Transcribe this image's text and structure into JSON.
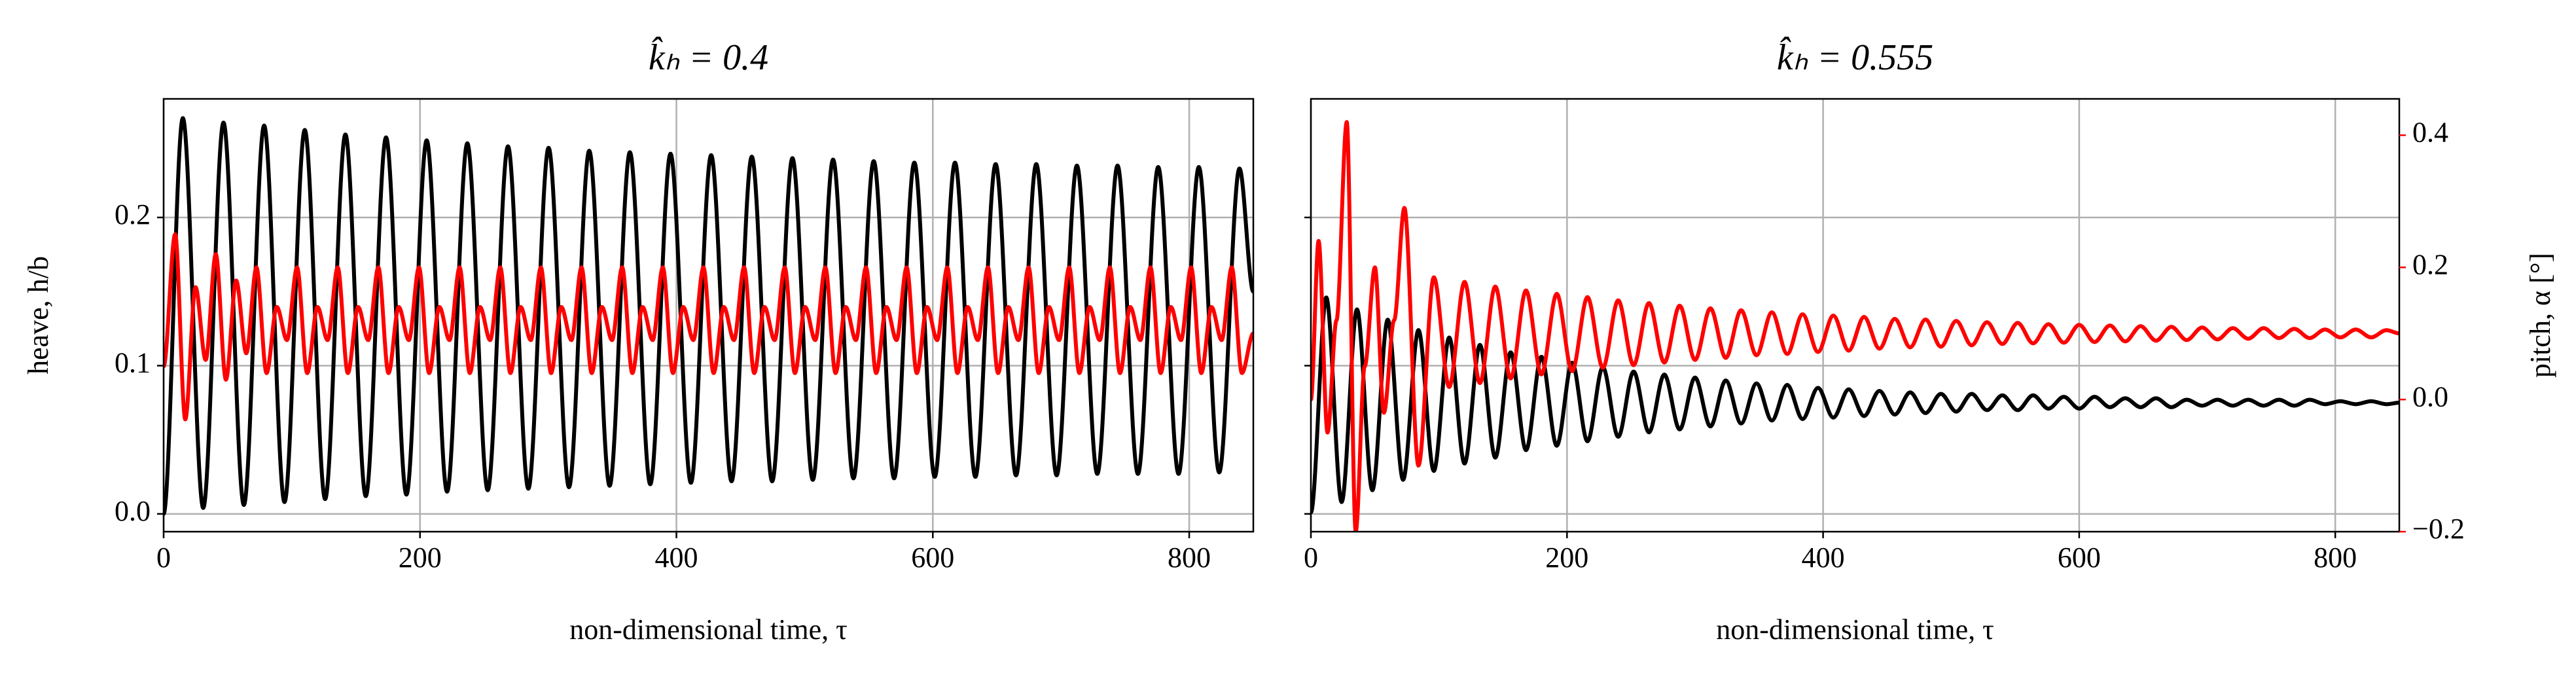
{
  "chart_data": [
    {
      "type": "line",
      "title": "k̂ₕ = 0.4",
      "xlabel": "non-dimensional time, τ",
      "ylabel": "heave, h/b",
      "xlim": [
        0,
        850
      ],
      "xticks": [
        0,
        200,
        400,
        600,
        800
      ],
      "ylim": [
        -0.012,
        0.28
      ],
      "yticks": [
        {
          "value": 0,
          "label": "0.0"
        },
        0.1,
        0.2
      ],
      "y2lim": [
        -0.2,
        0.455
      ],
      "grid": true,
      "series": [
        {
          "color": "#000000",
          "x": [
            0,
            15,
            30.9,
            46.7,
            62.6,
            78.4,
            94.3,
            110.1,
            126,
            141.8,
            157.7,
            173.5,
            189.4,
            205.2,
            221.1,
            236.9,
            252.8,
            268.6,
            284.5,
            300.3,
            316.2,
            332,
            347.9,
            363.7,
            379.6,
            395.4,
            411.3,
            427.1,
            443,
            458.8,
            474.7,
            490.5,
            506.4,
            522.2,
            538.1,
            553.9,
            569.8,
            585.6,
            601.5,
            617.3,
            633.2,
            649,
            664.9,
            680.7,
            696.6,
            712.4,
            728.3,
            744.1,
            760,
            775.8,
            791.7,
            807.5,
            823.4,
            839.2,
            850
          ],
          "values": [
            0,
            0.267,
            0.004,
            0.264,
            0.006,
            0.262,
            0.008,
            0.259,
            0.01,
            0.256,
            0.012,
            0.254,
            0.013,
            0.252,
            0.015,
            0.25,
            0.016,
            0.248,
            0.017,
            0.247,
            0.018,
            0.245,
            0.019,
            0.244,
            0.02,
            0.243,
            0.021,
            0.242,
            0.022,
            0.241,
            0.022,
            0.24,
            0.023,
            0.239,
            0.024,
            0.238,
            0.024,
            0.237,
            0.025,
            0.237,
            0.025,
            0.236,
            0.026,
            0.236,
            0.026,
            0.235,
            0.027,
            0.235,
            0.027,
            0.234,
            0.027,
            0.234,
            0.028,
            0.233,
            0.15
          ]
        },
        {
          "color": "#ff0000",
          "axis": "y2",
          "x": [
            0,
            9,
            16.9,
            24.9,
            32.8,
            40.7,
            48.6,
            56.6,
            64.5,
            72.4,
            80.3,
            88.3,
            96.2,
            104.1,
            112,
            120,
            127.9,
            135.8,
            143.7,
            151.7,
            159.6,
            167.5,
            175.4,
            183.4,
            191.3,
            199.2,
            207.1,
            215.1,
            223,
            230.9,
            238.8,
            246.8,
            254.7,
            262.6,
            270.5,
            278.5,
            286.4,
            294.3,
            302.2,
            310.2,
            318.1,
            326,
            333.9,
            341.9,
            349.8,
            357.7,
            365.6,
            373.6,
            381.5,
            389.4,
            397.3,
            405.3,
            413.2,
            421.1,
            429,
            437,
            444.9,
            452.8,
            460.7,
            468.7,
            476.6,
            484.5,
            492.4,
            500.4,
            508.3,
            516.2,
            524.1,
            532.1,
            540,
            547.9,
            555.8,
            563.8,
            571.7,
            579.6,
            587.5,
            595.5,
            603.4,
            611.3,
            619.2,
            627.2,
            635.1,
            643,
            650.9,
            658.9,
            666.8,
            674.7,
            682.6,
            690.6,
            698.5,
            706.4,
            714.3,
            722.3,
            730.2,
            738.1,
            746,
            754,
            761.9,
            769.8,
            777.7,
            785.7,
            793.6,
            801.5,
            809.4,
            817.4,
            825.3,
            833.2,
            841.1,
            850
          ],
          "values": [
            0.05,
            0.25,
            -0.03,
            0.17,
            0.06,
            0.22,
            0.03,
            0.18,
            0.07,
            0.2,
            0.04,
            0.14,
            0.09,
            0.2,
            0.04,
            0.14,
            0.09,
            0.2,
            0.04,
            0.14,
            0.09,
            0.2,
            0.04,
            0.14,
            0.09,
            0.2,
            0.04,
            0.14,
            0.09,
            0.2,
            0.04,
            0.14,
            0.09,
            0.2,
            0.04,
            0.14,
            0.09,
            0.2,
            0.04,
            0.14,
            0.09,
            0.2,
            0.04,
            0.14,
            0.09,
            0.2,
            0.04,
            0.14,
            0.09,
            0.2,
            0.04,
            0.14,
            0.09,
            0.2,
            0.04,
            0.14,
            0.09,
            0.2,
            0.04,
            0.14,
            0.09,
            0.2,
            0.04,
            0.14,
            0.09,
            0.2,
            0.04,
            0.14,
            0.09,
            0.2,
            0.04,
            0.14,
            0.09,
            0.2,
            0.04,
            0.14,
            0.09,
            0.2,
            0.04,
            0.14,
            0.09,
            0.2,
            0.04,
            0.14,
            0.09,
            0.2,
            0.04,
            0.14,
            0.09,
            0.2,
            0.04,
            0.14,
            0.09,
            0.2,
            0.04,
            0.14,
            0.09,
            0.2,
            0.04,
            0.14,
            0.09,
            0.2,
            0.04,
            0.14,
            0.09,
            0.2,
            0.04,
            0.1
          ]
        }
      ]
    },
    {
      "type": "line",
      "title": "k̂ₕ = 0.555",
      "xlabel": "non-dimensional time, τ",
      "y2label": "pitch, α [°]",
      "xlim": [
        0,
        850
      ],
      "xticks": [
        0,
        200,
        400,
        600,
        800
      ],
      "ylim": [
        -0.012,
        0.28
      ],
      "yticks": [
        0,
        0.1,
        0.2
      ],
      "sharey": true,
      "y2lim": [
        -0.2,
        0.455
      ],
      "y2ticks": [
        {
          "value": -0.2,
          "label": "−0.2"
        },
        {
          "value": 0,
          "label": "0.0"
        },
        0.2,
        0.4
      ],
      "y2color": "#ff0000",
      "grid": true,
      "series": [
        {
          "color": "#000000",
          "x": [
            0,
            12,
            24,
            36,
            48,
            60,
            72,
            84,
            96,
            108,
            120,
            132,
            144,
            156,
            168,
            180,
            192,
            204,
            216,
            228,
            240,
            252,
            264,
            276,
            288,
            300,
            312,
            324,
            336,
            348,
            360,
            372,
            384,
            396,
            408,
            420,
            432,
            444,
            456,
            468,
            480,
            492,
            504,
            516,
            528,
            540,
            552,
            564,
            576,
            588,
            600,
            612,
            624,
            636,
            648,
            660,
            672,
            684,
            696,
            708,
            720,
            732,
            744,
            756,
            768,
            780,
            792,
            804,
            816,
            828,
            840,
            850
          ],
          "values": [
            0.001,
            0.146,
            0.008,
            0.138,
            0.016,
            0.131,
            0.023,
            0.124,
            0.029,
            0.119,
            0.034,
            0.114,
            0.038,
            0.109,
            0.043,
            0.106,
            0.046,
            0.102,
            0.049,
            0.099,
            0.052,
            0.096,
            0.055,
            0.094,
            0.057,
            0.092,
            0.059,
            0.09,
            0.061,
            0.088,
            0.063,
            0.087,
            0.064,
            0.085,
            0.065,
            0.084,
            0.066,
            0.083,
            0.067,
            0.082,
            0.068,
            0.081,
            0.069,
            0.081,
            0.07,
            0.08,
            0.07,
            0.08,
            0.071,
            0.079,
            0.071,
            0.079,
            0.072,
            0.078,
            0.072,
            0.078,
            0.072,
            0.077,
            0.073,
            0.077,
            0.073,
            0.077,
            0.073,
            0.077,
            0.073,
            0.077,
            0.074,
            0.076,
            0.074,
            0.076,
            0.074,
            0.075
          ]
        },
        {
          "color": "#ff0000",
          "axis": "y2",
          "x": [
            0,
            6,
            13,
            20,
            28,
            35,
            42,
            50,
            57,
            65,
            73,
            84,
            96,
            108,
            120,
            132,
            144,
            156,
            168,
            180,
            192,
            204,
            216,
            228,
            240,
            252,
            264,
            276,
            288,
            300,
            312,
            324,
            336,
            348,
            360,
            372,
            384,
            396,
            408,
            420,
            432,
            444,
            456,
            468,
            480,
            492,
            504,
            516,
            528,
            540,
            552,
            564,
            576,
            588,
            600,
            612,
            624,
            636,
            648,
            660,
            672,
            684,
            696,
            708,
            720,
            732,
            744,
            756,
            768,
            780,
            792,
            804,
            816,
            828,
            840,
            850
          ],
          "values": [
            0,
            0.24,
            -0.05,
            0.12,
            0.42,
            -0.2,
            0.05,
            0.2,
            -0.02,
            0.12,
            0.29,
            -0.1,
            0.185,
            0.019,
            0.178,
            0.025,
            0.171,
            0.032,
            0.165,
            0.038,
            0.16,
            0.043,
            0.155,
            0.048,
            0.15,
            0.052,
            0.146,
            0.056,
            0.142,
            0.06,
            0.138,
            0.063,
            0.135,
            0.067,
            0.132,
            0.069,
            0.129,
            0.072,
            0.127,
            0.074,
            0.125,
            0.077,
            0.122,
            0.079,
            0.121,
            0.08,
            0.119,
            0.082,
            0.117,
            0.084,
            0.116,
            0.085,
            0.114,
            0.086,
            0.113,
            0.087,
            0.112,
            0.088,
            0.111,
            0.089,
            0.11,
            0.09,
            0.109,
            0.091,
            0.108,
            0.092,
            0.108,
            0.093,
            0.107,
            0.093,
            0.106,
            0.094,
            0.106,
            0.094,
            0.105,
            0.1
          ]
        }
      ]
    }
  ]
}
